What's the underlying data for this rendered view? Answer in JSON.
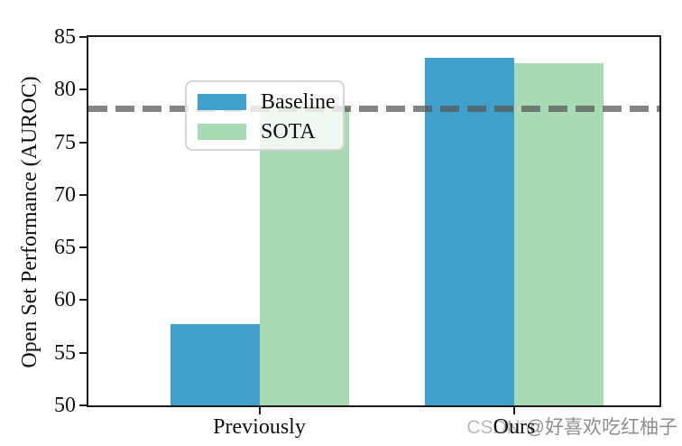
{
  "chart_data": {
    "type": "bar",
    "title": "",
    "xlabel": "",
    "ylabel": "Open Set Performance (AUROC)",
    "categories": [
      "Previously",
      "Ours"
    ],
    "series": [
      {
        "name": "Baseline",
        "color": "#41a0cb",
        "values": [
          57.7,
          83.0
        ]
      },
      {
        "name": "SOTA",
        "color": "#a8dab4",
        "values": [
          78.2,
          82.5
        ]
      }
    ],
    "ylim": [
      50,
      85
    ],
    "yticks": [
      50,
      55,
      60,
      65,
      70,
      75,
      80,
      85
    ],
    "reference_line": {
      "value": 78.2,
      "style": "dashed",
      "color_rgba": "rgba(85,85,85,0.72)"
    },
    "legend_position": "upper left",
    "grid": false
  },
  "watermark": {
    "prefix": "CSDN ",
    "handle": "@好喜欢吃红柚子"
  }
}
